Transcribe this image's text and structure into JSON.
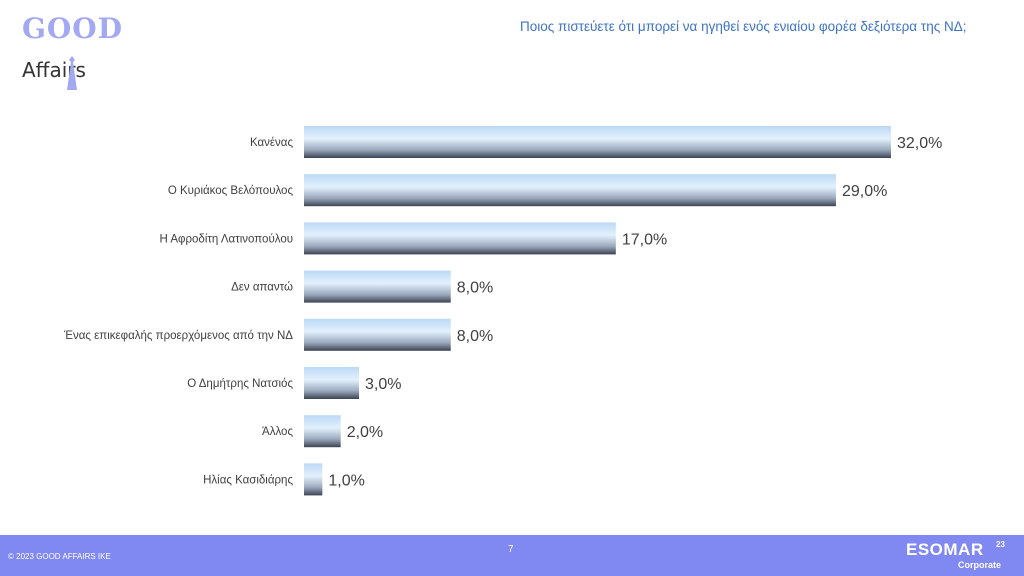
{
  "logo": {
    "line1": "GOOD",
    "line2": "Affairs"
  },
  "title": "Ποιος πιστεύετε ότι μπορεί να ηγηθεί ενός ενιαίου φορέα δεξιότερα της ΝΔ;",
  "chart_data": {
    "type": "bar",
    "orientation": "horizontal",
    "categories": [
      "Κανένας",
      "Ο Κυριάκος Βελόπουλος",
      "Η Αφροδίτη Λατινοπούλου",
      "Δεν απαντώ",
      "Ένας επικεφαλής προερχόμενος από την ΝΔ",
      "Ο Δημήτρης Νατσιός",
      "Άλλος",
      "Ηλίας Κασιδιάρης"
    ],
    "values": [
      32.0,
      29.0,
      17.0,
      8.0,
      8.0,
      3.0,
      2.0,
      1.0
    ],
    "data_labels": [
      "32,0%",
      "29,0%",
      "17,0%",
      "8,0%",
      "8,0%",
      "3,0%",
      "2,0%",
      "1,0%"
    ],
    "xlim": [
      0,
      32
    ],
    "grid": false,
    "legend": "none"
  },
  "footer": {
    "copyright": "© 2023 GOOD AFFAIRS IKE",
    "page": "7"
  },
  "badge": {
    "name": "ESOMAR",
    "year": "23",
    "sub": "Corporate"
  },
  "colors": {
    "accent": "#8088f2",
    "title": "#3d74c4",
    "bar_light": "#cfe6fb",
    "bar_dark": "#3b4352"
  }
}
